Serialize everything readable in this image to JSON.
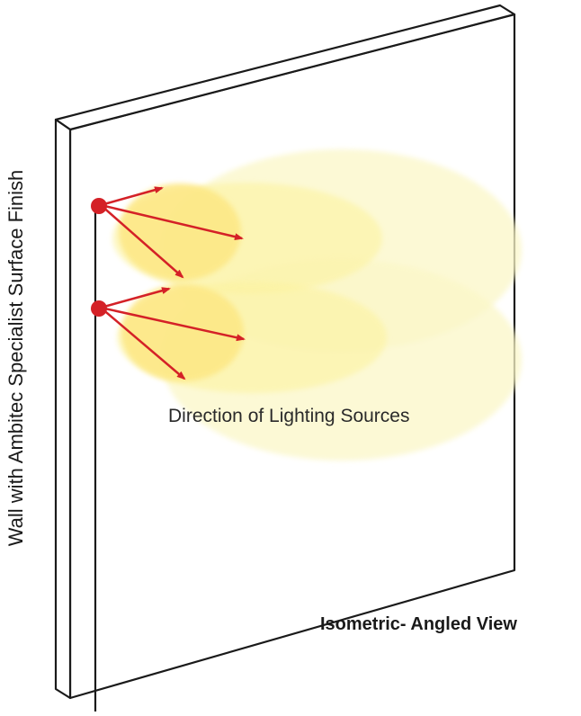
{
  "labels": {
    "wall": "Wall with Ambitec Specialist Surface Finish",
    "lighting": "Direction of Lighting Sources",
    "view": "Isometric- Angled View"
  },
  "colors": {
    "outline": "#1a1a1a",
    "light_source": "#d42127",
    "arrow": "#d42127",
    "glow_pale": "#fbf7c8",
    "glow_mid": "#fcf3a0",
    "glow_core": "#fde886"
  },
  "light_sources": [
    {
      "name": "upper-light-source",
      "arrows": 3
    },
    {
      "name": "lower-light-source",
      "arrows": 3
    }
  ]
}
